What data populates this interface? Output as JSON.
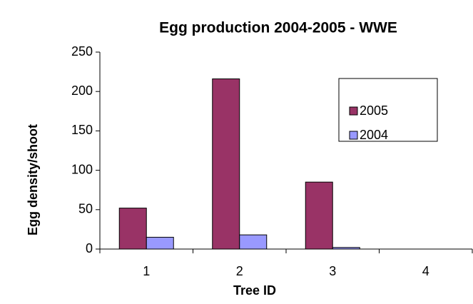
{
  "chart_data": {
    "type": "bar",
    "title": "Egg production 2004-2005 - WWE",
    "x_label": "Tree ID",
    "y_label": "Egg density/shoot",
    "categories": [
      "1",
      "2",
      "3",
      "4"
    ],
    "series": [
      {
        "name": "2005",
        "color": "#993366",
        "values": [
          52,
          216,
          85,
          0
        ]
      },
      {
        "name": "2004",
        "color": "#9999ff",
        "values": [
          15,
          18,
          2,
          0
        ]
      }
    ],
    "ylim": [
      0,
      250
    ],
    "yticks": [
      0,
      50,
      100,
      150,
      200,
      250
    ],
    "grid": false,
    "legend": "upper right"
  }
}
